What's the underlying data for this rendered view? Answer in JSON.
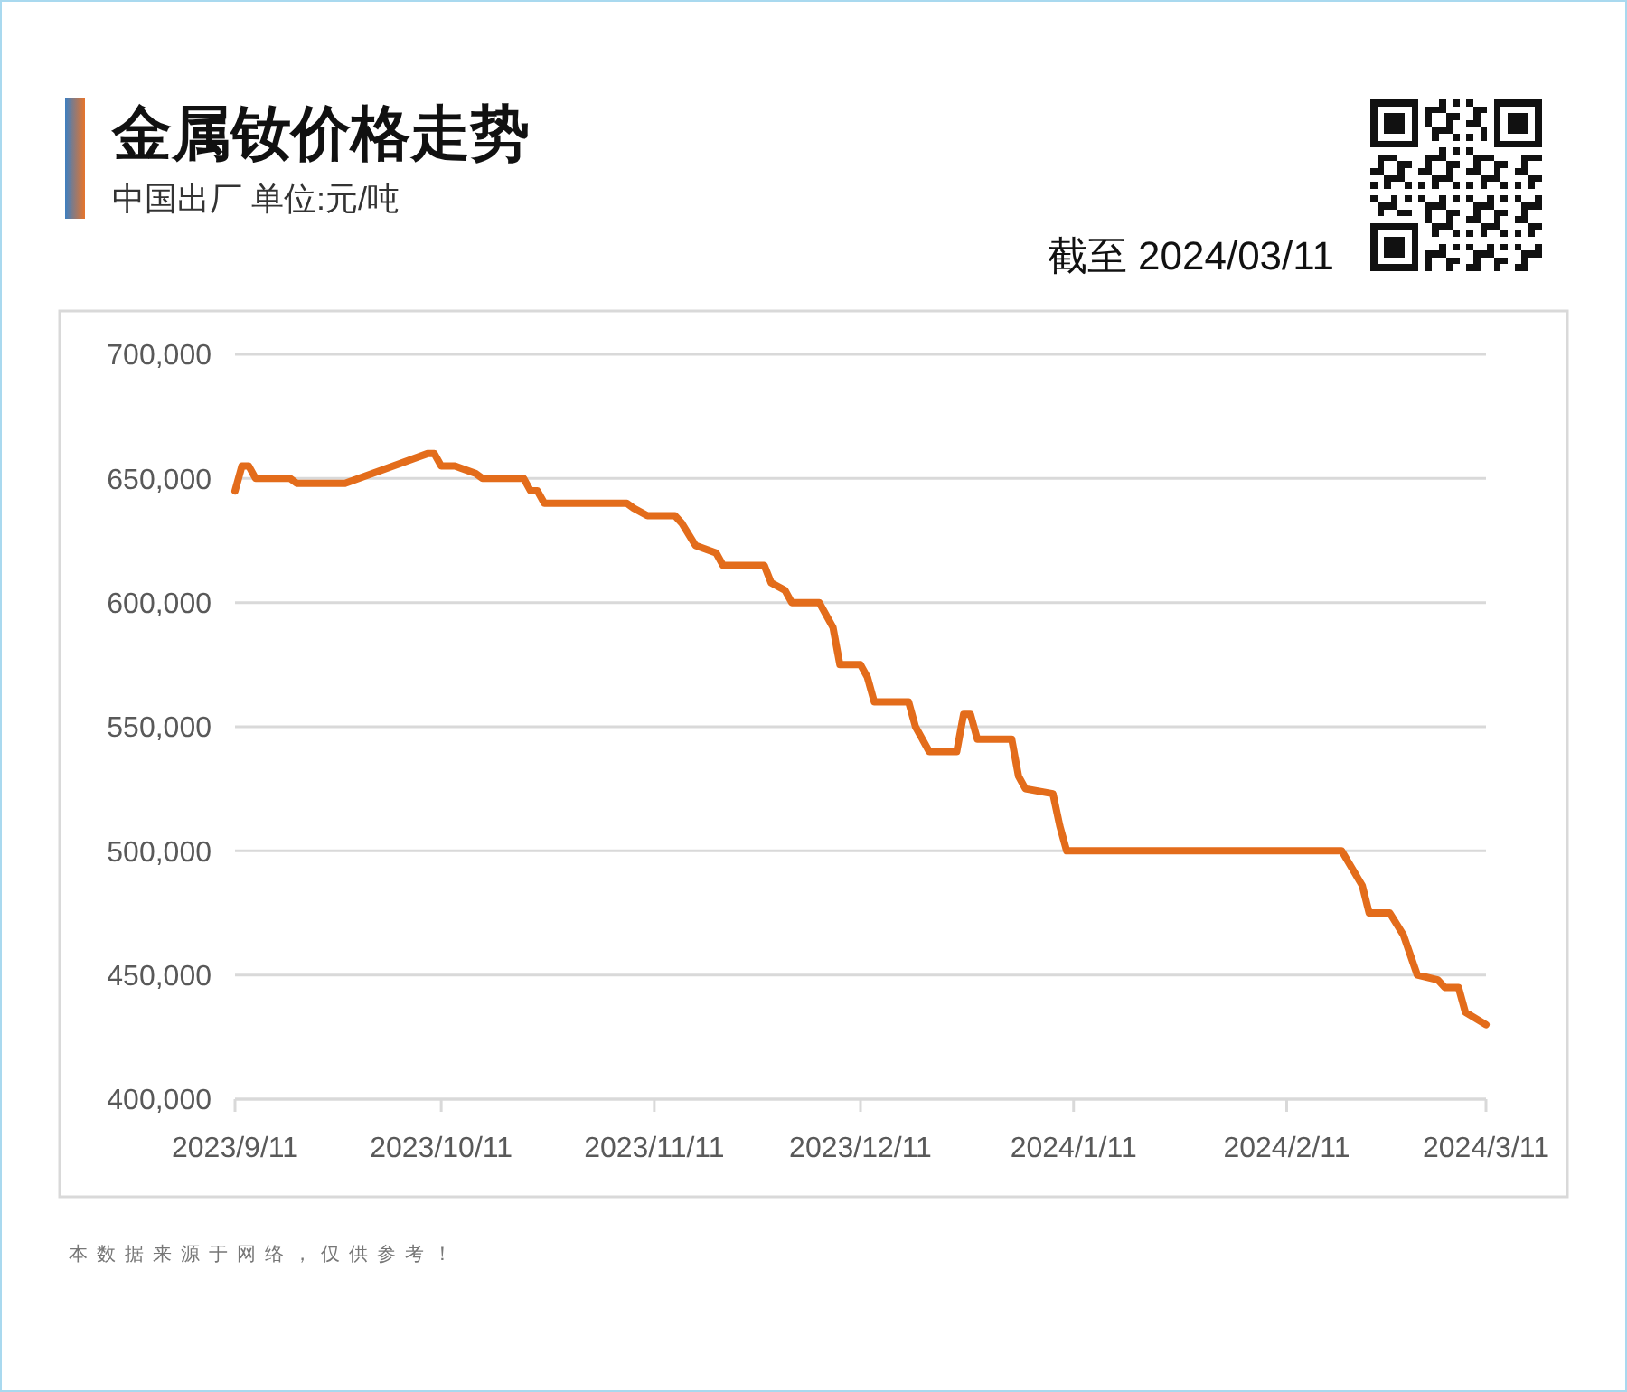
{
  "chart_data": {
    "type": "line",
    "title": "金属钕价格走势",
    "subtitle": "中国出厂 单位:元/吨",
    "annotations": [
      "截至 2024/03/11",
      "本数据来源于网络，仅供参考！"
    ],
    "x": [
      "2023-09-11",
      "2023-09-12",
      "2023-09-13",
      "2023-09-14",
      "2023-09-19",
      "2023-09-20",
      "2023-09-27",
      "2023-10-09",
      "2023-10-10",
      "2023-10-11",
      "2023-10-13",
      "2023-10-16",
      "2023-10-17",
      "2023-10-23",
      "2023-10-24",
      "2023-10-25",
      "2023-10-26",
      "2023-11-07",
      "2023-11-08",
      "2023-11-10",
      "2023-11-14",
      "2023-11-15",
      "2023-11-17",
      "2023-11-20",
      "2023-11-21",
      "2023-11-27",
      "2023-11-28",
      "2023-11-30",
      "2023-12-01",
      "2023-12-05",
      "2023-12-07",
      "2023-12-08",
      "2023-12-11",
      "2023-12-12",
      "2023-12-13",
      "2023-12-18",
      "2023-12-19",
      "2023-12-21",
      "2023-12-25",
      "2023-12-26",
      "2023-12-27",
      "2023-12-28",
      "2024-01-02",
      "2024-01-03",
      "2024-01-04",
      "2024-01-08",
      "2024-01-09",
      "2024-01-10",
      "2024-02-19",
      "2024-02-22",
      "2024-02-23",
      "2024-02-26",
      "2024-02-28",
      "2024-03-01",
      "2024-03-04",
      "2024-03-05",
      "2024-03-07",
      "2024-03-08",
      "2024-03-11"
    ],
    "series": [
      {
        "color": "#e36c1b",
        "values": [
          645000,
          655000,
          655000,
          650000,
          650000,
          648000,
          648000,
          660000,
          660000,
          655000,
          655000,
          652000,
          650000,
          650000,
          645000,
          645000,
          640000,
          640000,
          638000,
          635000,
          635000,
          632000,
          623000,
          620000,
          615000,
          615000,
          608000,
          605000,
          600000,
          600000,
          590000,
          575000,
          575000,
          570000,
          560000,
          560000,
          550000,
          540000,
          540000,
          555000,
          555000,
          545000,
          545000,
          530000,
          525000,
          523000,
          510000,
          500000,
          500000,
          486000,
          475000,
          475000,
          466000,
          450000,
          448000,
          445000,
          445000,
          435000,
          430000
        ]
      }
    ],
    "xlim": [
      "2023-09-11",
      "2024-03-11"
    ],
    "xticks": [
      {
        "value": "2023-09-11",
        "label": "2023/9/11"
      },
      {
        "value": "2023-10-11",
        "label": "2023/10/11"
      },
      {
        "value": "2023-11-11",
        "label": "2023/11/11"
      },
      {
        "value": "2023-12-11",
        "label": "2023/12/11"
      },
      {
        "value": "2024-01-11",
        "label": "2024/1/11"
      },
      {
        "value": "2024-02-11",
        "label": "2024/2/11"
      },
      {
        "value": "2024-03-11",
        "label": "2024/3/11"
      }
    ],
    "ylim": [
      400000,
      700000
    ],
    "yticks": [
      {
        "value": 400000,
        "label": "400,000"
      },
      {
        "value": 450000,
        "label": "450,000"
      },
      {
        "value": 500000,
        "label": "500,000"
      },
      {
        "value": 550000,
        "label": "550,000"
      },
      {
        "value": 600000,
        "label": "600,000"
      },
      {
        "value": 650000,
        "label": "650,000"
      },
      {
        "value": 700000,
        "label": "700,000"
      }
    ],
    "grid": "y"
  }
}
